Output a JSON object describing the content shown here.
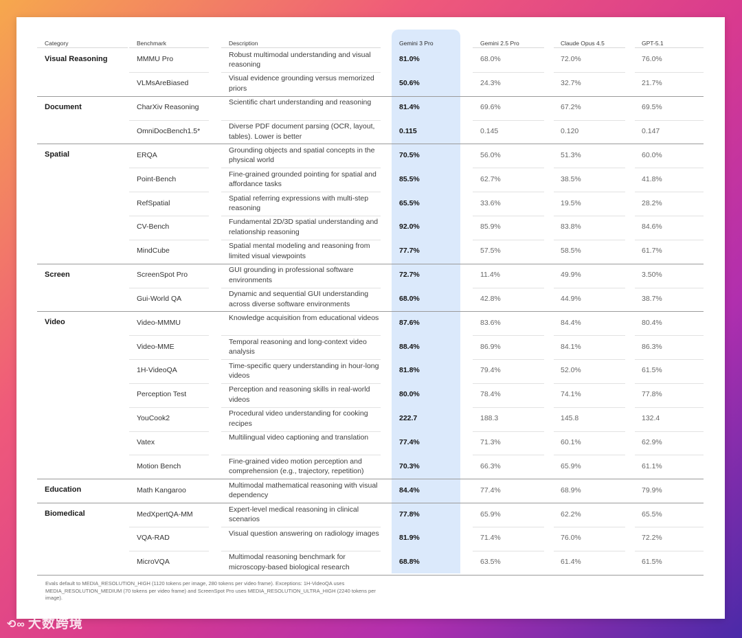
{
  "headers": {
    "category": "Category",
    "benchmark": "Benchmark",
    "description": "Description",
    "models": [
      "Gemini 3 Pro",
      "Gemini 2.5 Pro",
      "Claude Opus 4.5",
      "GPT-5.1"
    ]
  },
  "groups": [
    {
      "category": "Visual Reasoning",
      "rows": [
        {
          "benchmark": "MMMU Pro",
          "description": "Robust multimodal understanding and visual reasoning",
          "values": [
            "81.0%",
            "68.0%",
            "72.0%",
            "76.0%"
          ]
        },
        {
          "benchmark": "VLMsAreBiased",
          "description": "Visual evidence grounding versus memorized priors",
          "values": [
            "50.6%",
            "24.3%",
            "32.7%",
            "21.7%"
          ]
        }
      ]
    },
    {
      "category": "Document",
      "rows": [
        {
          "benchmark": "CharXiv Reasoning",
          "description": "Scientific chart understanding and reasoning",
          "values": [
            "81.4%",
            "69.6%",
            "67.2%",
            "69.5%"
          ]
        },
        {
          "benchmark": "OmniDocBench1.5*",
          "description": "Diverse PDF document parsing (OCR, layout, tables). Lower is better",
          "values": [
            "0.115",
            "0.145",
            "0.120",
            "0.147"
          ]
        }
      ]
    },
    {
      "category": "Spatial",
      "rows": [
        {
          "benchmark": "ERQA",
          "description": "Grounding objects and spatial concepts in the physical world",
          "values": [
            "70.5%",
            "56.0%",
            "51.3%",
            "60.0%"
          ]
        },
        {
          "benchmark": "Point-Bench",
          "description": "Fine-grained grounded pointing for spatial and affordance tasks",
          "values": [
            "85.5%",
            "62.7%",
            "38.5%",
            "41.8%"
          ]
        },
        {
          "benchmark": "RefSpatial",
          "description": "Spatial referring expressions with multi-step reasoning",
          "values": [
            "65.5%",
            "33.6%",
            "19.5%",
            "28.2%"
          ]
        },
        {
          "benchmark": "CV-Bench",
          "description": "Fundamental 2D/3D spatial understanding and relationship reasoning",
          "values": [
            "92.0%",
            "85.9%",
            "83.8%",
            "84.6%"
          ]
        },
        {
          "benchmark": "MindCube",
          "description": "Spatial mental modeling and reasoning from limited visual viewpoints",
          "values": [
            "77.7%",
            "57.5%",
            "58.5%",
            "61.7%"
          ]
        }
      ]
    },
    {
      "category": "Screen",
      "rows": [
        {
          "benchmark": "ScreenSpot Pro",
          "description": "GUI grounding in professional software environments",
          "values": [
            "72.7%",
            "11.4%",
            "49.9%",
            "3.50%"
          ]
        },
        {
          "benchmark": "Gui-World QA",
          "description": "Dynamic and sequential GUI understanding across diverse software environments",
          "values": [
            "68.0%",
            "42.8%",
            "44.9%",
            "38.7%"
          ]
        }
      ]
    },
    {
      "category": "Video",
      "rows": [
        {
          "benchmark": "Video-MMMU",
          "description": "Knowledge acquisition from educational videos",
          "values": [
            "87.6%",
            "83.6%",
            "84.4%",
            "80.4%"
          ]
        },
        {
          "benchmark": "Video-MME",
          "description": "Temporal reasoning and long-context video analysis",
          "values": [
            "88.4%",
            "86.9%",
            "84.1%",
            "86.3%"
          ]
        },
        {
          "benchmark": "1H-VideoQA",
          "description": "Time-specific query understanding in hour-long videos",
          "values": [
            "81.8%",
            "79.4%",
            "52.0%",
            "61.5%"
          ]
        },
        {
          "benchmark": "Perception Test",
          "description": "Perception and reasoning skills in real-world videos",
          "values": [
            "80.0%",
            "78.4%",
            "74.1%",
            "77.8%"
          ]
        },
        {
          "benchmark": "YouCook2",
          "description": "Procedural video understanding for cooking recipes",
          "values": [
            "222.7",
            "188.3",
            "145.8",
            "132.4"
          ]
        },
        {
          "benchmark": "Vatex",
          "description": "Multilingual video captioning and translation",
          "values": [
            "77.4%",
            "71.3%",
            "60.1%",
            "62.9%"
          ]
        },
        {
          "benchmark": "Motion Bench",
          "description": "Fine-grained video motion perception and comprehension (e.g., trajectory, repetition)",
          "values": [
            "70.3%",
            "66.3%",
            "65.9%",
            "61.1%"
          ]
        }
      ]
    },
    {
      "category": "Education",
      "rows": [
        {
          "benchmark": "Math Kangaroo",
          "description": "Multimodal mathematical reasoning with visual dependency",
          "values": [
            "84.4%",
            "77.4%",
            "68.9%",
            "79.9%"
          ]
        }
      ]
    },
    {
      "category": "Biomedical",
      "rows": [
        {
          "benchmark": "MedXpertQA-MM",
          "description": "Expert-level medical reasoning in clinical scenarios",
          "values": [
            "77.8%",
            "65.9%",
            "62.2%",
            "65.5%"
          ]
        },
        {
          "benchmark": "VQA-RAD",
          "description": "Visual question answering on radiology images",
          "values": [
            "81.9%",
            "71.4%",
            "76.0%",
            "72.2%"
          ]
        },
        {
          "benchmark": "MicroVQA",
          "description": "Multimodal reasoning benchmark for microscopy-based biological research",
          "values": [
            "68.8%",
            "63.5%",
            "61.4%",
            "61.5%"
          ]
        }
      ]
    }
  ],
  "footnote": "Evals default to MEDIA_RESOLUTION_HIGH (1120 tokens per image, 280 tokens per video frame). Exceptions: 1H-VideoQA uses MEDIA_RESOLUTION_MEDIUM (70 tokens per video frame) and ScreenSpot Pro uses MEDIA_RESOLUTION_ULTRA_HIGH (2240 tokens per image).",
  "watermark": "大数跨境",
  "colors": {
    "highlight": "#dbe9fb"
  }
}
